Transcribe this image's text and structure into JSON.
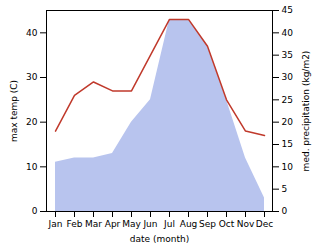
{
  "chart_data": {
    "type": "line",
    "xlabel": "date (month)",
    "ylabel": "max temp (C)",
    "y2label": "med. precipitation (kg/m2)",
    "categories": [
      "Jan",
      "Feb",
      "Mar",
      "Apr",
      "May",
      "Jun",
      "Jul",
      "Aug",
      "Sep",
      "Oct",
      "Nov",
      "Dec"
    ],
    "series": [
      {
        "type": "area",
        "axis": "y2",
        "color": "#b8c4ee",
        "values": [
          11,
          12,
          12,
          13,
          20,
          25,
          43,
          43,
          37,
          25,
          12,
          3
        ]
      },
      {
        "type": "line",
        "color": "#c0392b",
        "values": [
          18,
          26,
          29,
          27,
          27,
          35,
          43,
          43,
          37,
          25,
          18,
          17
        ]
      }
    ],
    "ylim": [
      0,
      45
    ],
    "yticks": [
      0,
      10,
      20,
      30,
      40
    ],
    "y2lim": [
      0,
      45
    ],
    "y2ticks": [
      0,
      5,
      10,
      15,
      20,
      25,
      30,
      35,
      40,
      45
    ],
    "grid": false
  }
}
